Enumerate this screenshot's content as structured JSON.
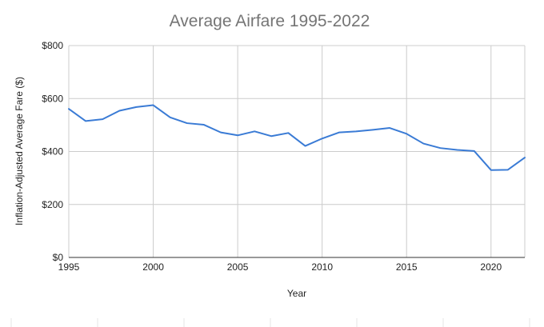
{
  "chart_data": {
    "type": "line",
    "title": "Average Airfare 1995-2022",
    "xlabel": "Year",
    "ylabel": "Inflation-Adjusted Average Fare ($)",
    "xlim": [
      1995,
      2022
    ],
    "ylim": [
      0,
      800
    ],
    "x_ticks": [
      1995,
      2000,
      2005,
      2010,
      2015,
      2020
    ],
    "x_tick_labels": [
      "1995",
      "2000",
      "2005",
      "2010",
      "2015",
      "2020"
    ],
    "y_ticks": [
      0,
      200,
      400,
      600,
      800
    ],
    "y_tick_labels": [
      "$0",
      "$200",
      "$400",
      "$600",
      "$800"
    ],
    "grid": true,
    "legend": "none",
    "series": [
      {
        "color": "#3a7bd5",
        "x": [
          1995,
          1996,
          1997,
          1998,
          1999,
          2000,
          2001,
          2002,
          2003,
          2004,
          2005,
          2006,
          2007,
          2008,
          2009,
          2010,
          2011,
          2012,
          2013,
          2014,
          2015,
          2016,
          2017,
          2018,
          2019,
          2020,
          2021,
          2022
        ],
        "y": [
          561,
          515,
          522,
          554,
          568,
          575,
          529,
          507,
          501,
          472,
          461,
          476,
          458,
          470,
          421,
          449,
          472,
          476,
          482,
          489,
          467,
          430,
          413,
          406,
          402,
          330,
          331,
          377
        ]
      }
    ]
  }
}
